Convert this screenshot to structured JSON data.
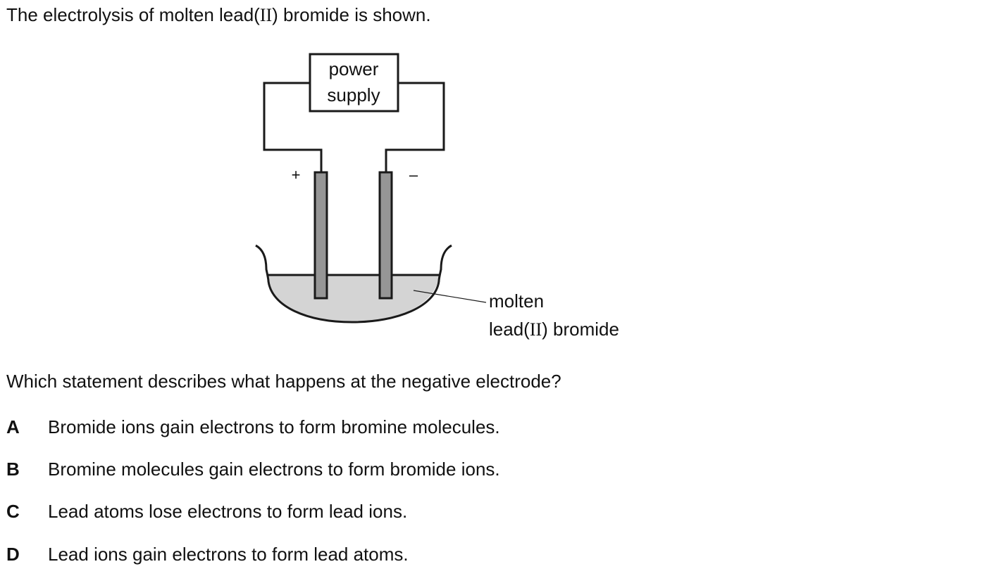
{
  "intro": {
    "before": "The electrolysis of molten lead(",
    "numeral": "II",
    "after": ") bromide is shown."
  },
  "diagram": {
    "power_supply_line1": "power",
    "power_supply_line2": "supply",
    "positive_sign": "+",
    "negative_sign": "–",
    "electrolyte_label_line1": "molten",
    "electrolyte_label_line2_before": "lead(",
    "electrolyte_label_line2_numeral": "II",
    "electrolyte_label_line2_after": ") bromide",
    "colors": {
      "electrode": "#969696",
      "melt": "#d4d4d4",
      "stroke": "#1a1a1a"
    }
  },
  "question": "Which statement describes what happens at the negative electrode?",
  "options": [
    {
      "letter": "A",
      "text": "Bromide ions gain electrons to form bromine molecules."
    },
    {
      "letter": "B",
      "text": "Bromine molecules gain electrons to form bromide ions."
    },
    {
      "letter": "C",
      "text": "Lead atoms lose electrons to form lead ions."
    },
    {
      "letter": "D",
      "text": "Lead ions gain electrons to form lead atoms."
    }
  ]
}
